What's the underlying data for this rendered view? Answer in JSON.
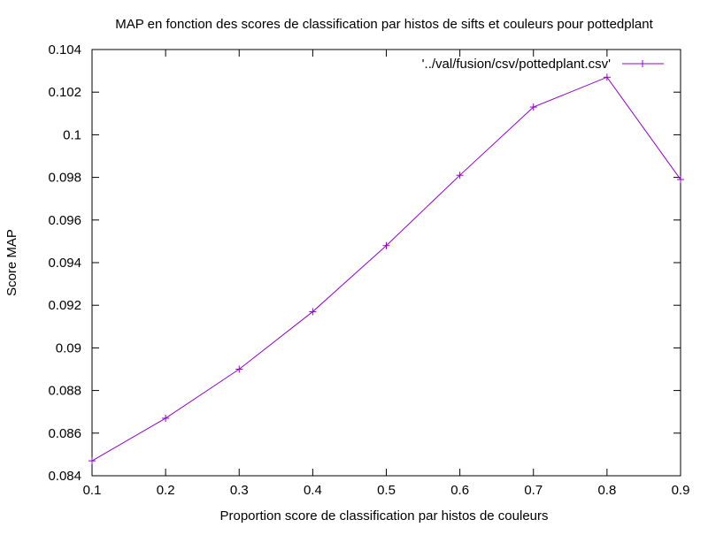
{
  "chart_data": {
    "type": "line",
    "title": "MAP en fonction des scores de classification par histos de sifts et couleurs pour pottedplant",
    "xlabel": "Proportion score de classification par histos de couleurs",
    "ylabel": "Score MAP",
    "xlim": [
      0.1,
      0.9
    ],
    "ylim": [
      0.084,
      0.104
    ],
    "x_ticks": [
      "0.1",
      "0.2",
      "0.3",
      "0.4",
      "0.5",
      "0.6",
      "0.7",
      "0.8",
      "0.9"
    ],
    "y_ticks": [
      "0.084",
      "0.086",
      "0.088",
      "0.09",
      "0.092",
      "0.094",
      "0.096",
      "0.098",
      "0.1",
      "0.102",
      "0.104"
    ],
    "grid": false,
    "legend_position": "top-right",
    "series": [
      {
        "name": "'../val/fusion/csv/pottedplant.csv'",
        "color": "#9400d3",
        "marker": "plus",
        "x": [
          0.1,
          0.2,
          0.3,
          0.4,
          0.5,
          0.6,
          0.7,
          0.8,
          0.9
        ],
        "y": [
          0.0847,
          0.0867,
          0.089,
          0.0917,
          0.0948,
          0.0981,
          0.1013,
          0.1027,
          0.0979
        ]
      }
    ]
  }
}
